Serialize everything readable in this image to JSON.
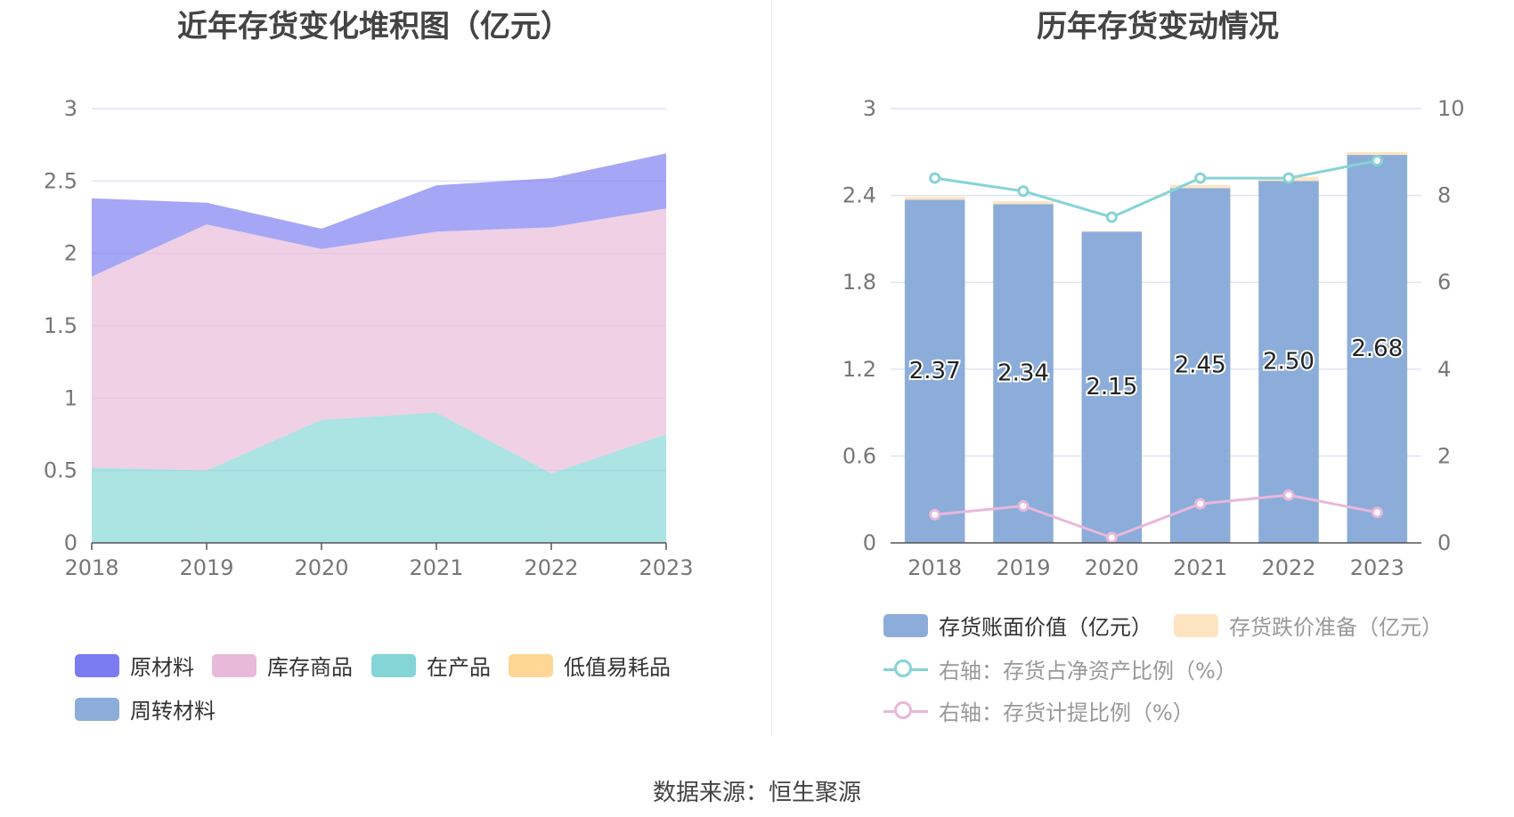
{
  "left_chart": {
    "title": "近年存货变化堆积图（亿元）",
    "legend": [
      {
        "label": "原材料",
        "color": "#7b7cf2"
      },
      {
        "label": "库存商品",
        "color": "#e8b9d8"
      },
      {
        "label": "在产品",
        "color": "#84d5d6"
      },
      {
        "label": "低值易耗品",
        "color": "#ffd694"
      },
      {
        "label": "周转材料",
        "color": "#8cadd9"
      }
    ]
  },
  "right_chart": {
    "title": "历年存货变动情况",
    "legend": [
      {
        "label": "存货账面价值（亿元）",
        "color": "#8cadd9"
      },
      {
        "label": "存货跌价准备（亿元）",
        "color": "#fde5c2"
      },
      {
        "label": "右轴：存货占净资产比例（%）",
        "color": "#86d3d6"
      },
      {
        "label": "右轴：存货计提比例（%）",
        "color": "#e9b7dc"
      }
    ]
  },
  "chart_data": [
    {
      "type": "area",
      "stacked": true,
      "title": "近年存货变化堆积图（亿元）",
      "x": [
        "2018",
        "2019",
        "2020",
        "2021",
        "2022",
        "2023"
      ],
      "ylim": [
        0,
        3
      ],
      "yticks": [
        "0",
        "0.5",
        "1",
        "1.5",
        "2",
        "2.5",
        "3"
      ],
      "grid": true,
      "legend_position": "bottom",
      "series": [
        {
          "name": "在产品",
          "values": [
            0.52,
            0.5,
            0.85,
            0.9,
            0.48,
            0.75
          ],
          "color": "#84d5d6"
        },
        {
          "name": "库存商品",
          "values": [
            1.32,
            1.7,
            1.18,
            1.25,
            1.7,
            1.56
          ],
          "color": "#e8b9d8"
        },
        {
          "name": "原材料",
          "values": [
            0.54,
            0.15,
            0.14,
            0.32,
            0.34,
            0.38
          ],
          "color": "#7b7cf2"
        },
        {
          "name": "低值易耗品",
          "values": [
            0,
            0,
            0,
            0,
            0,
            0
          ],
          "color": "#ffd694"
        },
        {
          "name": "周转材料",
          "values": [
            0,
            0,
            0,
            0,
            0,
            0
          ],
          "color": "#8cadd9"
        }
      ]
    },
    {
      "type": "bar",
      "stacked": true,
      "title": "历年存货变动情况",
      "categories": [
        "2018",
        "2019",
        "2020",
        "2021",
        "2022",
        "2023"
      ],
      "ylim": [
        0,
        3
      ],
      "yticks": [
        "0",
        "0.6",
        "1.2",
        "1.8",
        "2.4",
        "3"
      ],
      "y2lim": [
        0,
        10
      ],
      "y2ticks": [
        "0",
        "2",
        "4",
        "6",
        "8",
        "10"
      ],
      "grid": true,
      "legend_position": "bottom",
      "series": [
        {
          "name": "存货账面价值（亿元）",
          "values": [
            2.37,
            2.34,
            2.15,
            2.45,
            2.5,
            2.68
          ],
          "labels": [
            "2.37",
            "2.34",
            "2.15",
            "2.45",
            "2.50",
            "2.68"
          ],
          "color": "#8cadd9",
          "axis": "left"
        },
        {
          "name": "存货跌价准备（亿元）",
          "values": [
            0.02,
            0.02,
            0.004,
            0.022,
            0.028,
            0.02
          ],
          "color": "#fde5c2",
          "axis": "left"
        },
        {
          "name": "右轴：存货占净资产比例（%）",
          "type": "line",
          "values": [
            8.4,
            8.1,
            7.5,
            8.4,
            8.4,
            8.8
          ],
          "color": "#86d3d6",
          "axis": "right"
        },
        {
          "name": "右轴：存货计提比例（%）",
          "type": "line",
          "values": [
            0.65,
            0.85,
            0.12,
            0.9,
            1.1,
            0.7
          ],
          "color": "#e9b7dc",
          "axis": "right"
        }
      ]
    }
  ],
  "footer": {
    "source": "数据来源：恒生聚源"
  }
}
